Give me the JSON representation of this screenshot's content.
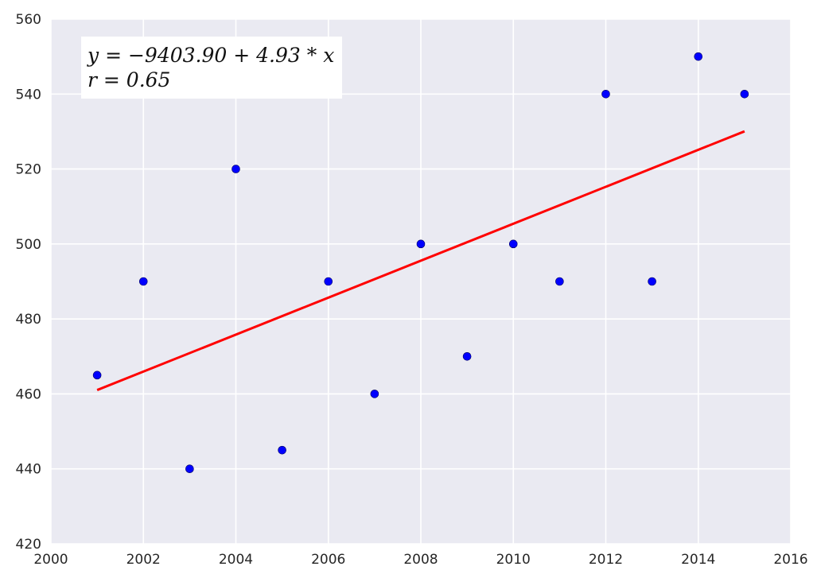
{
  "chart_data": {
    "type": "scatter",
    "title": "",
    "xlabel": "",
    "ylabel": "",
    "xlim": [
      2000,
      2016
    ],
    "ylim": [
      420,
      560
    ],
    "xticks": [
      2000,
      2002,
      2004,
      2006,
      2008,
      2010,
      2012,
      2014,
      2016
    ],
    "yticks": [
      420,
      440,
      460,
      480,
      500,
      520,
      540,
      560
    ],
    "grid": true,
    "legend": "none",
    "colors": {
      "background": "#EAEAF2",
      "grid": "#FFFFFF",
      "points": "#0000FF",
      "fit_line": "#FF0000"
    },
    "points": {
      "x": [
        2001,
        2002,
        2003,
        2004,
        2005,
        2006,
        2007,
        2008,
        2009,
        2010,
        2011,
        2012,
        2013,
        2014,
        2015
      ],
      "y": [
        465,
        490,
        440,
        520,
        445,
        490,
        460,
        500,
        470,
        500,
        490,
        540,
        490,
        550,
        540
      ]
    },
    "fit_line": {
      "intercept": -9403.9,
      "slope": 4.93,
      "x_range": [
        2001,
        2015
      ]
    },
    "annotations": [
      "y = −9403.90 + 4.93 * x",
      "r = 0.65"
    ]
  }
}
